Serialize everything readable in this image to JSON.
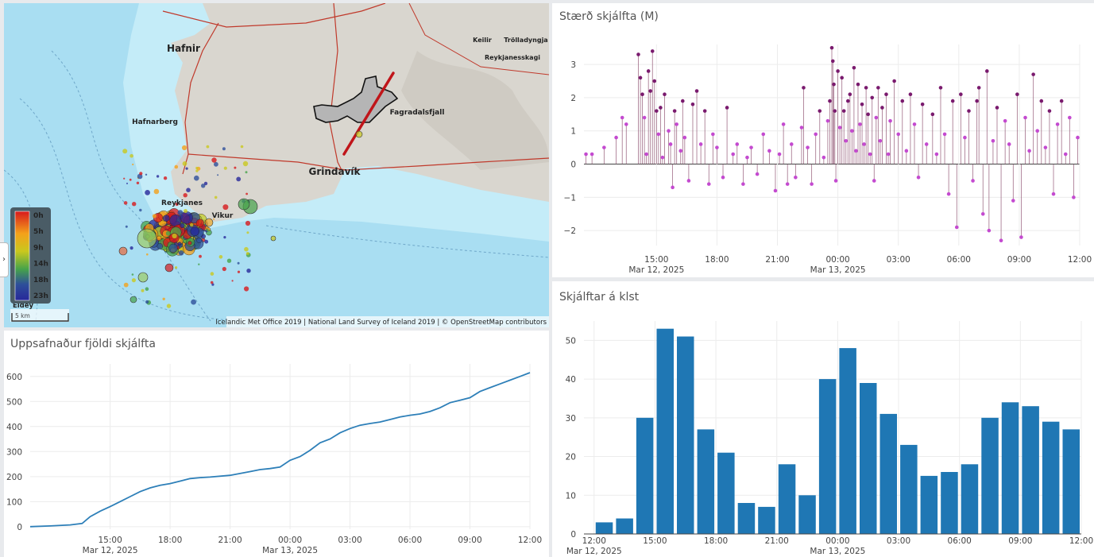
{
  "map": {
    "places": [
      {
        "name": "Hafnir",
        "size": "big"
      },
      {
        "name": "Hafnarberg",
        "size": "small"
      },
      {
        "name": "Grindavík",
        "size": "big"
      },
      {
        "name": "Fagradalsfjall",
        "size": "small"
      },
      {
        "name": "Keilir",
        "size": "small"
      },
      {
        "name": "Trölladyngja",
        "size": "small"
      },
      {
        "name": "Reykjanesskagi",
        "size": "small"
      },
      {
        "name": "Reykjanes",
        "size": "small"
      },
      {
        "name": "Vikur",
        "size": "small"
      },
      {
        "name": "Eldey",
        "size": "small"
      }
    ],
    "legend": {
      "labels": [
        "0h",
        "5h",
        "9h",
        "14h",
        "18h",
        "23h"
      ],
      "colors": [
        "#d7191c",
        "#f4a11a",
        "#c9c81e",
        "#46a34a",
        "#2e4f9a",
        "#27289a"
      ]
    },
    "scale_label": "5 km",
    "attribution": "Icelandic Met Office 2019 | National Land Survey of Iceland 2019 | © OpenStreetMap contributors",
    "toggle_icon": "chevron-right-icon",
    "colors": {
      "sea": "#a9def2",
      "land": "#d9d6cf",
      "road": "#c0392b",
      "fissure": "#c0151a",
      "lava": "#b5b5b5"
    }
  },
  "magnitude_chart": {
    "title": "Stærð skjálfta (M)",
    "chart_data": {
      "type": "scatter",
      "title": "Stærð skjálfta (M)",
      "xlabel": "",
      "ylabel": "",
      "x_ticks": [
        {
          "t": 15,
          "label": "15:00",
          "sub": "Mar 12, 2025"
        },
        {
          "t": 18,
          "label": "18:00",
          "sub": ""
        },
        {
          "t": 21,
          "label": "21:00",
          "sub": ""
        },
        {
          "t": 24,
          "label": "00:00",
          "sub": "Mar 13, 2025"
        },
        {
          "t": 27,
          "label": "03:00",
          "sub": ""
        },
        {
          "t": 30,
          "label": "06:00",
          "sub": ""
        },
        {
          "t": 33,
          "label": "09:00",
          "sub": ""
        },
        {
          "t": 36,
          "label": "12:00",
          "sub": ""
        }
      ],
      "xlim": [
        11.4,
        36
      ],
      "ylim": [
        -2.45,
        3.6
      ],
      "y_ticks": [
        3,
        2,
        1,
        0,
        -1,
        -2
      ],
      "colors": {
        "large": "#7a1a6e",
        "small": "#c44ad0",
        "stem": "#8a4a6a"
      },
      "points": [
        [
          11.5,
          0.3
        ],
        [
          11.8,
          0.3
        ],
        [
          12.4,
          0.5
        ],
        [
          13.0,
          0.8
        ],
        [
          13.3,
          1.4
        ],
        [
          13.5,
          1.2
        ],
        [
          14.1,
          3.3
        ],
        [
          14.2,
          2.6
        ],
        [
          14.3,
          2.1
        ],
        [
          14.4,
          1.4
        ],
        [
          14.5,
          0.3
        ],
        [
          14.6,
          2.8
        ],
        [
          14.7,
          2.2
        ],
        [
          14.8,
          3.4
        ],
        [
          14.9,
          2.5
        ],
        [
          15.0,
          1.6
        ],
        [
          15.1,
          0.9
        ],
        [
          15.2,
          1.7
        ],
        [
          15.3,
          0.2
        ],
        [
          15.4,
          2.1
        ],
        [
          15.6,
          1.0
        ],
        [
          15.7,
          0.6
        ],
        [
          15.8,
          -0.7
        ],
        [
          15.9,
          1.6
        ],
        [
          16.0,
          1.2
        ],
        [
          16.2,
          0.4
        ],
        [
          16.3,
          1.9
        ],
        [
          16.4,
          0.8
        ],
        [
          16.6,
          -0.5
        ],
        [
          16.8,
          1.8
        ],
        [
          17.0,
          2.2
        ],
        [
          17.2,
          0.6
        ],
        [
          17.4,
          1.6
        ],
        [
          17.6,
          -0.6
        ],
        [
          17.8,
          0.9
        ],
        [
          18.0,
          0.5
        ],
        [
          18.3,
          -0.4
        ],
        [
          18.5,
          1.7
        ],
        [
          18.8,
          0.3
        ],
        [
          19.0,
          0.6
        ],
        [
          19.3,
          -0.6
        ],
        [
          19.5,
          0.2
        ],
        [
          19.7,
          0.5
        ],
        [
          20.0,
          -0.3
        ],
        [
          20.3,
          0.9
        ],
        [
          20.6,
          0.4
        ],
        [
          20.9,
          -0.8
        ],
        [
          21.1,
          0.3
        ],
        [
          21.3,
          1.2
        ],
        [
          21.5,
          -0.6
        ],
        [
          21.7,
          0.6
        ],
        [
          21.9,
          -0.4
        ],
        [
          22.2,
          1.1
        ],
        [
          22.3,
          2.3
        ],
        [
          22.5,
          0.5
        ],
        [
          22.7,
          -0.6
        ],
        [
          22.9,
          0.9
        ],
        [
          23.1,
          1.6
        ],
        [
          23.3,
          0.2
        ],
        [
          23.5,
          1.3
        ],
        [
          23.6,
          1.9
        ],
        [
          23.7,
          3.5
        ],
        [
          23.75,
          3.1
        ],
        [
          23.8,
          2.4
        ],
        [
          23.85,
          1.6
        ],
        [
          23.9,
          -0.5
        ],
        [
          24.0,
          2.8
        ],
        [
          24.1,
          1.1
        ],
        [
          24.2,
          2.6
        ],
        [
          24.3,
          1.6
        ],
        [
          24.4,
          0.7
        ],
        [
          24.5,
          1.9
        ],
        [
          24.6,
          2.1
        ],
        [
          24.7,
          1.0
        ],
        [
          24.8,
          2.9
        ],
        [
          24.9,
          0.4
        ],
        [
          25.0,
          2.4
        ],
        [
          25.1,
          1.2
        ],
        [
          25.2,
          1.8
        ],
        [
          25.3,
          0.6
        ],
        [
          25.4,
          2.3
        ],
        [
          25.5,
          1.5
        ],
        [
          25.6,
          0.3
        ],
        [
          25.7,
          2.0
        ],
        [
          25.8,
          -0.5
        ],
        [
          25.9,
          1.4
        ],
        [
          26.0,
          2.3
        ],
        [
          26.1,
          0.7
        ],
        [
          26.2,
          1.7
        ],
        [
          26.4,
          2.1
        ],
        [
          26.5,
          0.3
        ],
        [
          26.6,
          1.3
        ],
        [
          26.8,
          2.5
        ],
        [
          27.0,
          0.9
        ],
        [
          27.2,
          1.9
        ],
        [
          27.4,
          0.4
        ],
        [
          27.6,
          2.1
        ],
        [
          27.8,
          1.2
        ],
        [
          28.0,
          -0.4
        ],
        [
          28.2,
          1.8
        ],
        [
          28.4,
          0.6
        ],
        [
          28.7,
          1.5
        ],
        [
          28.9,
          0.3
        ],
        [
          29.1,
          2.3
        ],
        [
          29.3,
          0.9
        ],
        [
          29.5,
          -0.9
        ],
        [
          29.7,
          1.9
        ],
        [
          29.9,
          -1.9
        ],
        [
          30.1,
          2.1
        ],
        [
          30.3,
          0.8
        ],
        [
          30.5,
          1.6
        ],
        [
          30.7,
          -0.5
        ],
        [
          30.9,
          1.9
        ],
        [
          31.0,
          2.3
        ],
        [
          31.2,
          -1.5
        ],
        [
          31.4,
          2.8
        ],
        [
          31.5,
          -2.0
        ],
        [
          31.7,
          0.7
        ],
        [
          31.9,
          1.7
        ],
        [
          32.1,
          -2.3
        ],
        [
          32.3,
          1.3
        ],
        [
          32.5,
          0.6
        ],
        [
          32.7,
          -1.1
        ],
        [
          32.9,
          2.1
        ],
        [
          33.1,
          -2.2
        ],
        [
          33.3,
          1.4
        ],
        [
          33.5,
          0.4
        ],
        [
          33.7,
          2.7
        ],
        [
          33.9,
          1.0
        ],
        [
          34.1,
          1.9
        ],
        [
          34.3,
          0.5
        ],
        [
          34.5,
          1.6
        ],
        [
          34.7,
          -0.9
        ],
        [
          34.9,
          1.2
        ],
        [
          35.1,
          1.9
        ],
        [
          35.3,
          0.3
        ],
        [
          35.5,
          1.4
        ],
        [
          35.7,
          -1.0
        ],
        [
          35.9,
          0.8
        ]
      ]
    }
  },
  "cumulative_chart": {
    "title": "Uppsafnaður fjöldi skjálfta",
    "chart_data": {
      "type": "line",
      "title": "Uppsafnaður fjöldi skjálfta",
      "xlabel": "",
      "ylabel": "",
      "x_ticks": [
        {
          "t": 15,
          "label": "15:00",
          "sub": "Mar 12, 2025"
        },
        {
          "t": 18,
          "label": "18:00",
          "sub": ""
        },
        {
          "t": 21,
          "label": "21:00",
          "sub": ""
        },
        {
          "t": 24,
          "label": "00:00",
          "sub": "Mar 13, 2025"
        },
        {
          "t": 27,
          "label": "03:00",
          "sub": ""
        },
        {
          "t": 30,
          "label": "06:00",
          "sub": ""
        },
        {
          "t": 33,
          "label": "09:00",
          "sub": ""
        },
        {
          "t": 36,
          "label": "12:00",
          "sub": ""
        }
      ],
      "xlim": [
        11.0,
        36.0
      ],
      "ylim": [
        -10,
        650
      ],
      "y_ticks": [
        0,
        100,
        200,
        300,
        400,
        500,
        600
      ],
      "color": "#2d7fb8",
      "x": [
        11.0,
        12.0,
        13.0,
        13.6,
        14.0,
        14.5,
        15.0,
        15.5,
        16.0,
        16.5,
        17.0,
        17.5,
        18.0,
        18.5,
        19.0,
        19.5,
        20.0,
        21.0,
        22.0,
        22.5,
        23.0,
        23.5,
        24.0,
        24.5,
        25.0,
        25.5,
        26.0,
        26.5,
        27.0,
        27.5,
        28.0,
        28.5,
        29.0,
        29.5,
        30.0,
        30.5,
        31.0,
        31.5,
        32.0,
        32.5,
        33.0,
        33.5,
        34.0,
        34.5,
        35.0,
        35.5,
        36.0
      ],
      "values": [
        0,
        3,
        7,
        13,
        40,
        62,
        80,
        100,
        120,
        140,
        155,
        165,
        172,
        182,
        192,
        196,
        198,
        205,
        220,
        228,
        232,
        238,
        265,
        280,
        305,
        335,
        350,
        375,
        392,
        405,
        412,
        418,
        428,
        438,
        445,
        450,
        460,
        475,
        495,
        505,
        515,
        540,
        555,
        570,
        585,
        600,
        615
      ]
    }
  },
  "hourly_chart": {
    "title": "Skjálftar á klst",
    "chart_data": {
      "type": "bar",
      "title": "Skjálftar á klst",
      "xlabel": "",
      "ylabel": "",
      "x_ticks": [
        {
          "t": 12,
          "label": "12:00",
          "sub": "Mar 12, 2025"
        },
        {
          "t": 15,
          "label": "15:00",
          "sub": ""
        },
        {
          "t": 18,
          "label": "18:00",
          "sub": ""
        },
        {
          "t": 21,
          "label": "21:00",
          "sub": ""
        },
        {
          "t": 24,
          "label": "00:00",
          "sub": "Mar 13, 2025"
        },
        {
          "t": 27,
          "label": "03:00",
          "sub": ""
        },
        {
          "t": 30,
          "label": "06:00",
          "sub": ""
        },
        {
          "t": 33,
          "label": "09:00",
          "sub": ""
        },
        {
          "t": 36,
          "label": "12:00",
          "sub": ""
        }
      ],
      "xlim": [
        11.5,
        36.0
      ],
      "ylim": [
        0,
        55
      ],
      "y_ticks": [
        0,
        10,
        20,
        30,
        40,
        50
      ],
      "color": "#1f77b4",
      "hours": [
        12,
        13,
        14,
        15,
        16,
        17,
        18,
        19,
        20,
        21,
        22,
        23,
        24,
        25,
        26,
        27,
        28,
        29,
        30,
        31,
        32,
        33,
        34,
        35
      ],
      "values": [
        3,
        4,
        30,
        53,
        51,
        27,
        21,
        8,
        7,
        18,
        10,
        40,
        48,
        39,
        31,
        23,
        15,
        16,
        18,
        30,
        34,
        33,
        29,
        27
      ]
    }
  }
}
